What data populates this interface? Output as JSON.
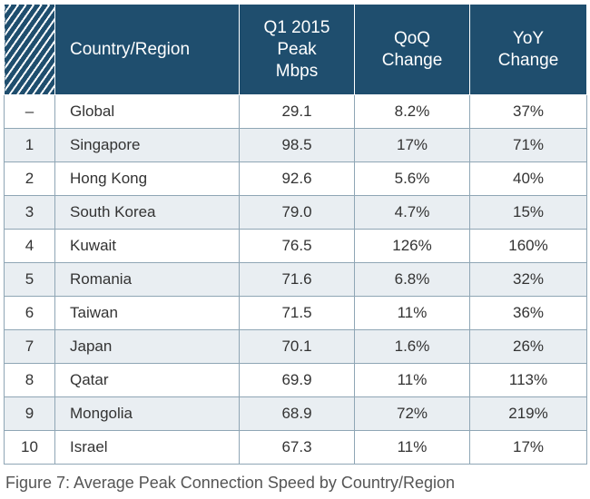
{
  "chart_data": {
    "type": "table",
    "columns": [
      "",
      "Country/Region",
      "Q1 2015 Peak Mbps",
      "QoQ Change",
      "YoY Change"
    ],
    "header_lines": {
      "peak": [
        "Q1 2015",
        "Peak",
        "Mbps"
      ],
      "qoq": [
        "QoQ",
        "Change"
      ],
      "yoy": [
        "YoY",
        "Change"
      ]
    },
    "rows": [
      {
        "rank": "–",
        "country": "Global",
        "peak": "29.1",
        "qoq": "8.2%",
        "yoy": "37%"
      },
      {
        "rank": "1",
        "country": "Singapore",
        "peak": "98.5",
        "qoq": "17%",
        "yoy": "71%"
      },
      {
        "rank": "2",
        "country": "Hong Kong",
        "peak": "92.6",
        "qoq": "5.6%",
        "yoy": "40%"
      },
      {
        "rank": "3",
        "country": "South Korea",
        "peak": "79.0",
        "qoq": "4.7%",
        "yoy": "15%"
      },
      {
        "rank": "4",
        "country": "Kuwait",
        "peak": "76.5",
        "qoq": "126%",
        "yoy": "160%"
      },
      {
        "rank": "5",
        "country": "Romania",
        "peak": "71.6",
        "qoq": "6.8%",
        "yoy": "32%"
      },
      {
        "rank": "6",
        "country": "Taiwan",
        "peak": "71.5",
        "qoq": "11%",
        "yoy": "36%"
      },
      {
        "rank": "7",
        "country": "Japan",
        "peak": "70.1",
        "qoq": "1.6%",
        "yoy": "26%"
      },
      {
        "rank": "8",
        "country": "Qatar",
        "peak": "69.9",
        "qoq": "11%",
        "yoy": "113%"
      },
      {
        "rank": "9",
        "country": "Mongolia",
        "peak": "68.9",
        "qoq": "72%",
        "yoy": "219%"
      },
      {
        "rank": "10",
        "country": "Israel",
        "peak": "67.3",
        "qoq": "11%",
        "yoy": "17%"
      }
    ],
    "caption": "Figure 7: Average Peak Connection Speed by Country/Region"
  },
  "colors": {
    "header_background": "#1f4e6e",
    "header_text": "#ffffff",
    "row_alt_background": "#e9eef2",
    "border": "#8fa6b5",
    "body_text": "#333333"
  }
}
